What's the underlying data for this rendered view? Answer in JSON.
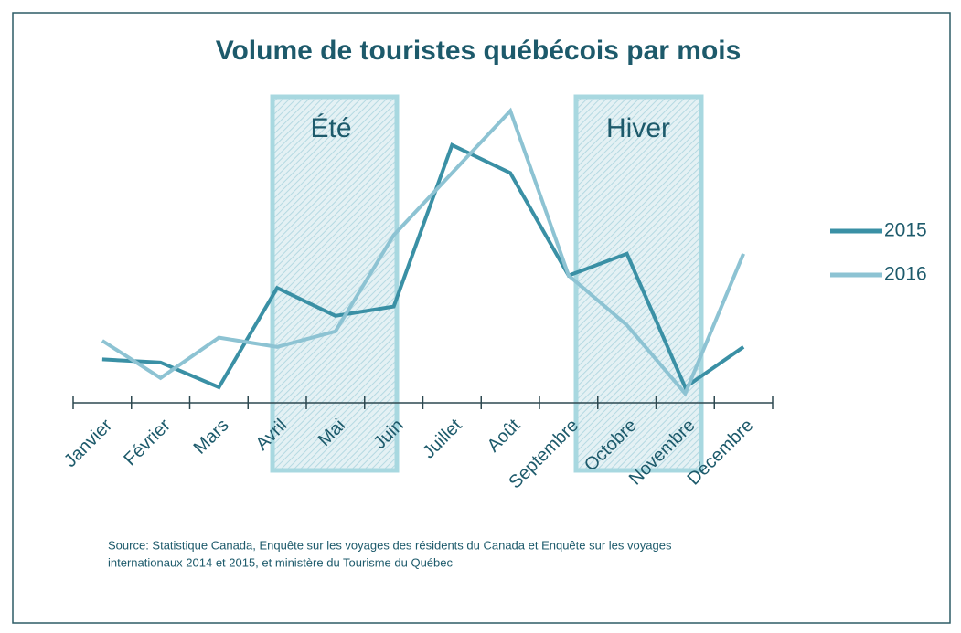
{
  "chart_data": {
    "type": "line",
    "title": "Volume de touristes québécois par mois",
    "categories": [
      "Janvier",
      "Février",
      "Mars",
      "Avril",
      "Mai",
      "Juin",
      "Juillet",
      "Août",
      "Septembre",
      "Octobre",
      "Novembre",
      "Décembre"
    ],
    "series": [
      {
        "name": "2015",
        "color": "#3a90a5",
        "values": [
          14,
          13,
          5,
          37,
          28,
          31,
          83,
          74,
          41,
          48,
          5,
          18
        ]
      },
      {
        "name": "2016",
        "color": "#8dc3d3",
        "values": [
          20,
          8,
          21,
          18,
          23,
          54,
          74,
          94,
          41,
          25,
          3,
          48
        ]
      }
    ],
    "ylim": [
      0,
      100
    ],
    "annotations": [
      "Été",
      "Hiver"
    ],
    "source": [
      "Source: Statistique Canada, Enquête sur les voyages des résidents du Canada et Enquête sur les voyages",
      "internationaux 2014 et 2015, et ministère du Tourisme du Québec"
    ],
    "legend": "right"
  }
}
